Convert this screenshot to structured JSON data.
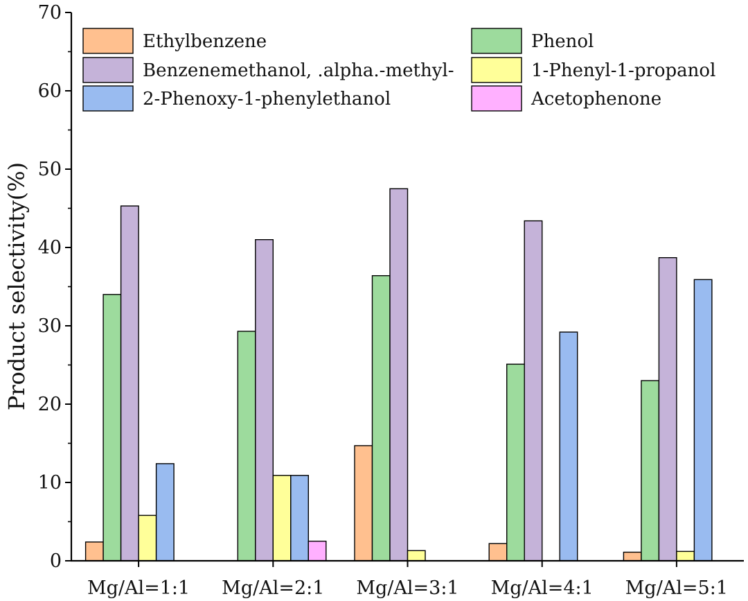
{
  "chart_data": {
    "type": "bar",
    "title": "",
    "xlabel": "",
    "ylabel": "Product selectivity(%)",
    "ylim": [
      0,
      70
    ],
    "yticks": [
      0,
      10,
      20,
      30,
      40,
      50,
      60,
      70
    ],
    "grid": false,
    "legend_position": "top",
    "categories": [
      "Mg/Al=1:1",
      "Mg/Al=2:1",
      "Mg/Al=3:1",
      "Mg/Al=4:1",
      "Mg/Al=5:1"
    ],
    "series": [
      {
        "name": "Ethylbenzene",
        "color": "#FFC08F",
        "values": [
          2.4,
          0,
          14.7,
          2.2,
          1.1
        ]
      },
      {
        "name": "Phenol",
        "color": "#9DDB9D",
        "values": [
          34.0,
          29.3,
          36.4,
          25.1,
          23.0
        ]
      },
      {
        "name": "Benzenemethanol, .alpha.-methyl-",
        "color": "#C5B3D9",
        "values": [
          45.3,
          41.0,
          47.5,
          43.4,
          38.7
        ]
      },
      {
        "name": "1-Phenyl-1-propanol",
        "color": "#FFFF99",
        "values": [
          5.8,
          10.9,
          1.3,
          0,
          1.2
        ]
      },
      {
        "name": "2-Phenoxy-1-phenylethanol",
        "color": "#99BBF0",
        "values": [
          12.4,
          10.9,
          0,
          29.2,
          35.9
        ]
      },
      {
        "name": "Acetophenone",
        "color": "#FFB0FF",
        "values": [
          0,
          2.5,
          0,
          0,
          0
        ]
      }
    ]
  }
}
